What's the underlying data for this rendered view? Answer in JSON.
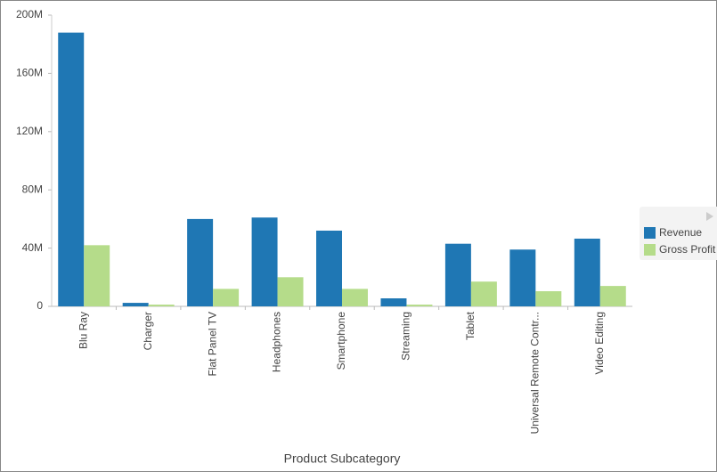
{
  "chart_data": {
    "type": "bar",
    "x_label": "Product Subcategory",
    "categories": [
      "Blu Ray",
      "Charger",
      "Flat Panel TV",
      "Headphones",
      "Smartphone",
      "Streaming",
      "Tablet",
      "Universal Remote Contr...",
      "Video Editing"
    ],
    "series": [
      {
        "name": "Revenue",
        "color": "#1f77b4",
        "values": [
          188000000,
          2400000,
          60000000,
          61000000,
          52000000,
          5500000,
          43000000,
          39000000,
          46500000
        ]
      },
      {
        "name": "Gross Profit",
        "color": "#b5dc8a",
        "values": [
          42000000,
          1200000,
          12000000,
          20000000,
          12000000,
          1200000,
          17000000,
          10400000,
          14000000
        ]
      }
    ],
    "ylim": [
      0,
      200000000
    ],
    "yticks": [
      0,
      {
        "value": 40000000,
        "label": "40M"
      },
      {
        "value": 80000000,
        "label": "80M"
      },
      {
        "value": 120000000,
        "label": "120M"
      },
      {
        "value": 160000000,
        "label": "160M"
      },
      {
        "value": 200000000,
        "label": "200M"
      }
    ],
    "legend": "right"
  }
}
